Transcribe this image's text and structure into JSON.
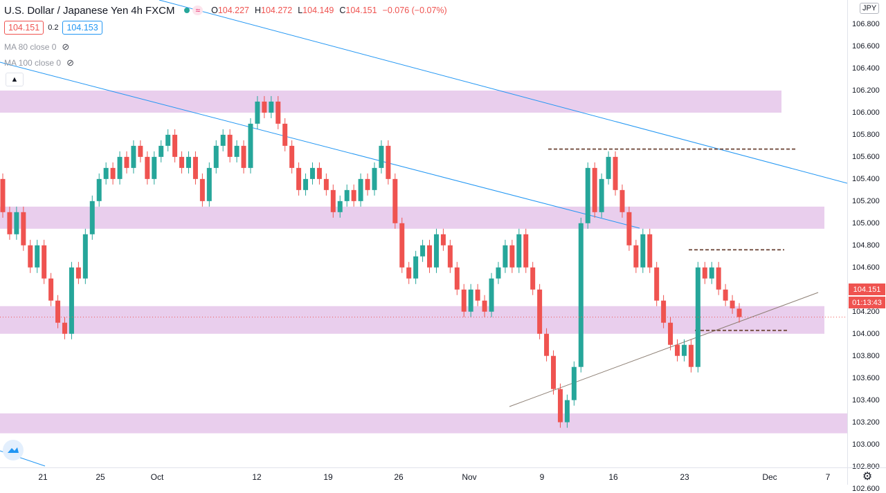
{
  "header": {
    "title": "U.S. Dollar / Japanese Yen",
    "interval": "4h",
    "exchange": "FXCM",
    "wave_icon": "≈",
    "o_label": "O",
    "o": "104.227",
    "h_label": "H",
    "h": "104.272",
    "l_label": "L",
    "l": "104.149",
    "c_label": "C",
    "c": "104.151",
    "change": "−0.076 (−0.07%)"
  },
  "quote": {
    "bid": "104.151",
    "spread": "0.2",
    "ask": "104.153"
  },
  "indicators": [
    {
      "label": "MA 80 close 0",
      "icon": "eye-off-icon"
    },
    {
      "label": "MA 100 close 0",
      "icon": "eye-off-icon"
    }
  ],
  "collapse_icon": "chevron-up-icon",
  "axis": {
    "currency": "JPY",
    "ticks": [
      "106.800",
      "106.600",
      "106.400",
      "106.200",
      "106.000",
      "105.800",
      "105.600",
      "105.400",
      "105.200",
      "105.000",
      "104.800",
      "104.600",
      "104.400",
      "104.200",
      "104.000",
      "103.800",
      "103.600",
      "103.400",
      "103.200",
      "103.000",
      "102.800",
      "102.600"
    ],
    "last_price": "104.151",
    "countdown": "01:13:43"
  },
  "xaxis": {
    "ticks": [
      "21",
      "25",
      "Oct",
      "12",
      "19",
      "26",
      "Nov",
      "9",
      "16",
      "23",
      "Dec",
      "7"
    ]
  },
  "colors": {
    "up": "#26a69a",
    "down": "#ef5350",
    "zone": "#e1bee7",
    "trend": "#2196f3",
    "level": "#795548"
  },
  "chart_data": {
    "type": "candlestick",
    "symbol": "USDJPY",
    "ylim": [
      102.55,
      106.9
    ],
    "candles": [
      [
        105.4,
        105.1
      ],
      [
        105.1,
        104.9
      ],
      [
        104.9,
        105.1
      ],
      [
        105.1,
        104.8
      ],
      [
        104.8,
        104.6
      ],
      [
        104.6,
        104.8
      ],
      [
        104.8,
        104.5
      ],
      [
        104.5,
        104.3
      ],
      [
        104.3,
        104.1
      ],
      [
        104.1,
        104.0
      ],
      [
        104.0,
        104.6
      ],
      [
        104.6,
        104.5
      ],
      [
        104.5,
        104.9
      ],
      [
        104.9,
        105.2
      ],
      [
        105.2,
        105.4
      ],
      [
        105.4,
        105.5
      ],
      [
        105.5,
        105.4
      ],
      [
        105.4,
        105.6
      ],
      [
        105.6,
        105.5
      ],
      [
        105.5,
        105.7
      ],
      [
        105.7,
        105.6
      ],
      [
        105.6,
        105.4
      ],
      [
        105.4,
        105.6
      ],
      [
        105.6,
        105.7
      ],
      [
        105.7,
        105.8
      ],
      [
        105.8,
        105.6
      ],
      [
        105.6,
        105.5
      ],
      [
        105.5,
        105.6
      ],
      [
        105.6,
        105.4
      ],
      [
        105.4,
        105.2
      ],
      [
        105.2,
        105.5
      ],
      [
        105.5,
        105.7
      ],
      [
        105.7,
        105.8
      ],
      [
        105.8,
        105.6
      ],
      [
        105.6,
        105.7
      ],
      [
        105.7,
        105.5
      ],
      [
        105.5,
        105.9
      ],
      [
        105.9,
        106.1
      ],
      [
        106.1,
        106.0
      ],
      [
        106.0,
        106.1
      ],
      [
        106.1,
        105.9
      ],
      [
        105.9,
        105.7
      ],
      [
        105.7,
        105.5
      ],
      [
        105.5,
        105.3
      ],
      [
        105.3,
        105.4
      ],
      [
        105.4,
        105.5
      ],
      [
        105.5,
        105.4
      ],
      [
        105.4,
        105.3
      ],
      [
        105.3,
        105.1
      ],
      [
        105.1,
        105.2
      ],
      [
        105.2,
        105.3
      ],
      [
        105.3,
        105.2
      ],
      [
        105.2,
        105.4
      ],
      [
        105.4,
        105.3
      ],
      [
        105.3,
        105.5
      ],
      [
        105.5,
        105.7
      ],
      [
        105.7,
        105.4
      ],
      [
        105.4,
        105.0
      ],
      [
        105.0,
        104.6
      ],
      [
        104.6,
        104.5
      ],
      [
        104.5,
        104.7
      ],
      [
        104.7,
        104.8
      ],
      [
        104.8,
        104.6
      ],
      [
        104.6,
        104.9
      ],
      [
        104.9,
        104.8
      ],
      [
        104.8,
        104.6
      ],
      [
        104.6,
        104.4
      ],
      [
        104.4,
        104.2
      ],
      [
        104.2,
        104.4
      ],
      [
        104.4,
        104.3
      ],
      [
        104.3,
        104.2
      ],
      [
        104.2,
        104.5
      ],
      [
        104.5,
        104.6
      ],
      [
        104.6,
        104.8
      ],
      [
        104.8,
        104.6
      ],
      [
        104.6,
        104.9
      ],
      [
        104.9,
        104.6
      ],
      [
        104.6,
        104.4
      ],
      [
        104.4,
        104.0
      ],
      [
        104.0,
        103.8
      ],
      [
        103.8,
        103.5
      ],
      [
        103.5,
        103.2
      ],
      [
        103.2,
        103.4
      ],
      [
        103.4,
        103.7
      ],
      [
        103.7,
        105.0
      ],
      [
        105.0,
        105.5
      ],
      [
        105.5,
        105.1
      ],
      [
        105.1,
        105.4
      ],
      [
        105.4,
        105.6
      ],
      [
        105.6,
        105.3
      ],
      [
        105.3,
        105.1
      ],
      [
        105.1,
        104.8
      ],
      [
        104.8,
        104.6
      ],
      [
        104.6,
        104.9
      ],
      [
        104.9,
        104.6
      ],
      [
        104.6,
        104.3
      ],
      [
        104.3,
        104.1
      ],
      [
        104.1,
        103.9
      ],
      [
        103.9,
        103.8
      ],
      [
        103.8,
        103.9
      ],
      [
        103.9,
        103.7
      ],
      [
        103.7,
        104.6
      ],
      [
        104.6,
        104.5
      ],
      [
        104.5,
        104.6
      ],
      [
        104.6,
        104.4
      ],
      [
        104.4,
        104.3
      ],
      [
        104.3,
        104.23
      ],
      [
        104.227,
        104.151
      ]
    ],
    "zones": [
      [
        106.0,
        106.2
      ],
      [
        104.95,
        105.15
      ],
      [
        104.0,
        104.25
      ],
      [
        103.1,
        103.28
      ]
    ],
    "levels": [
      105.67,
      104.76,
      104.03
    ],
    "last": 104.151
  }
}
